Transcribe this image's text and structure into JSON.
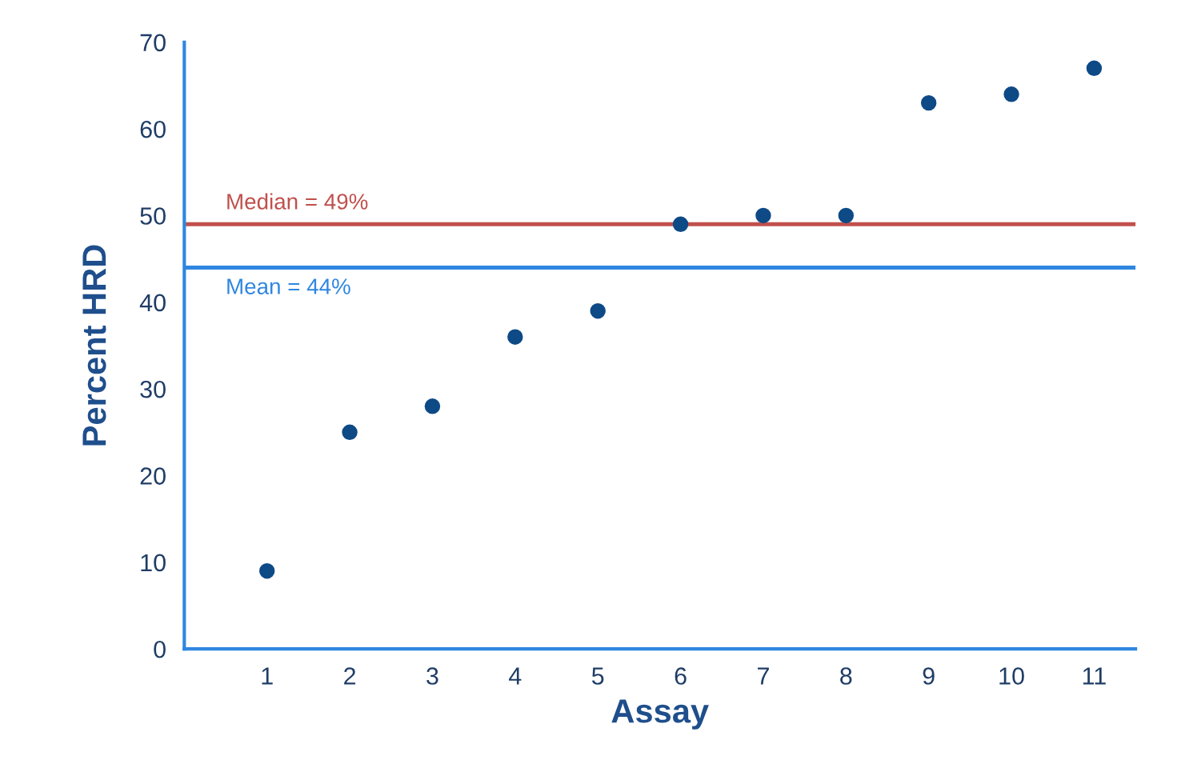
{
  "chart_data": {
    "type": "scatter",
    "xlabel": "Assay",
    "ylabel": "Percent HRD",
    "x": [
      1,
      2,
      3,
      4,
      5,
      6,
      7,
      8,
      9,
      10,
      11
    ],
    "series": [
      {
        "color": "#0e4a86",
        "values": [
          9,
          25,
          28,
          36,
          39,
          49,
          50,
          50,
          63,
          64,
          67
        ]
      }
    ],
    "xlim": [
      0,
      11.5
    ],
    "xticks": [
      1,
      2,
      3,
      4,
      5,
      6,
      7,
      8,
      9,
      10,
      11
    ],
    "ylim": [
      0,
      70
    ],
    "yticks": [
      0,
      10,
      20,
      30,
      40,
      50,
      60,
      70
    ],
    "ref_lines": [
      {
        "axis": "y",
        "value": 49,
        "label": "Median = 49%",
        "color": "#c0504d"
      },
      {
        "axis": "y",
        "value": 44,
        "label": "Mean = 44%",
        "color": "#2f86e0"
      }
    ],
    "marker": "circle",
    "grid": false,
    "legend": false
  }
}
